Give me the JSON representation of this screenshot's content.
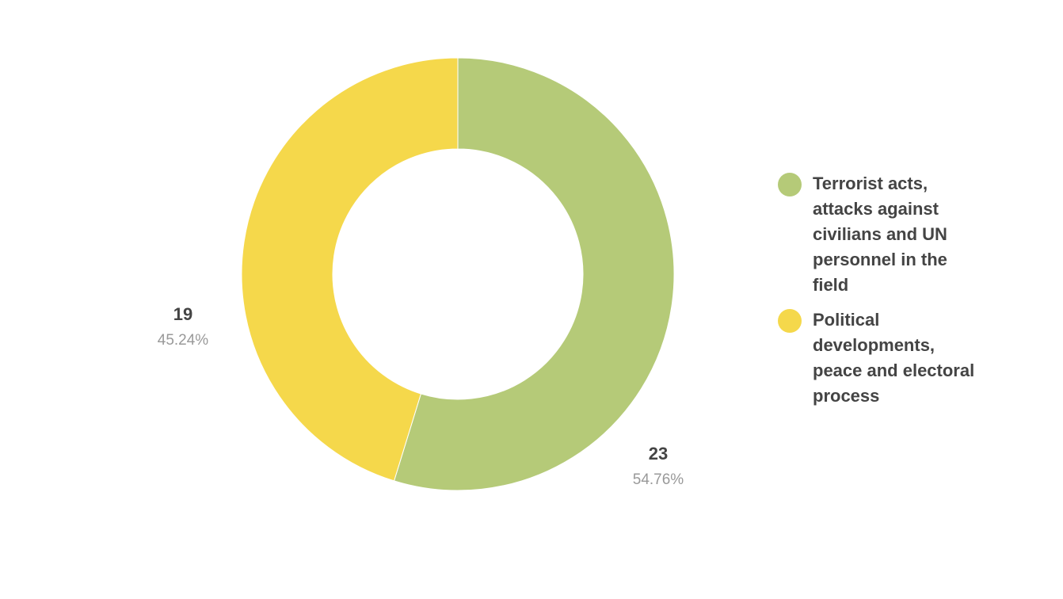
{
  "chart_data": {
    "type": "donut",
    "categories": [
      "Terrorist acts, attacks against civilians and UN personnel in the field",
      "Political developments, peace and electoral process"
    ],
    "values": [
      23,
      19
    ],
    "percent_labels": [
      "54.76%",
      "45.24%"
    ],
    "colors": [
      "#b5ca78",
      "#f5d84b"
    ],
    "legend": "right"
  }
}
